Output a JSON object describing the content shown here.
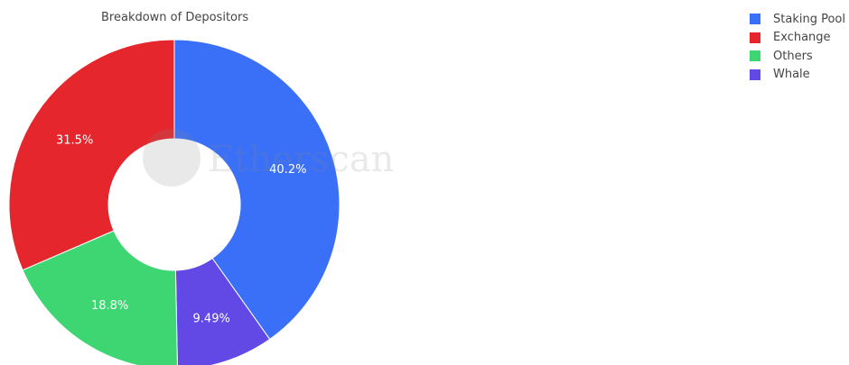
{
  "chart_data": {
    "type": "pie",
    "title": "Breakdown of Depositors",
    "hole": true,
    "categories": [
      "Staking Pool",
      "Exchange",
      "Others",
      "Whale"
    ],
    "slice_order": [
      "Staking Pool",
      "Whale",
      "Others",
      "Exchange"
    ],
    "values": [
      40.2,
      31.5,
      18.8,
      9.49
    ],
    "value_labels": [
      "40.2%",
      "31.5%",
      "18.8%",
      "9.49%"
    ],
    "colors": [
      "#3a6ff7",
      "#e5262c",
      "#3dd672",
      "#6249e6"
    ],
    "legend_position": "top-right"
  },
  "watermark": "Etherscan"
}
